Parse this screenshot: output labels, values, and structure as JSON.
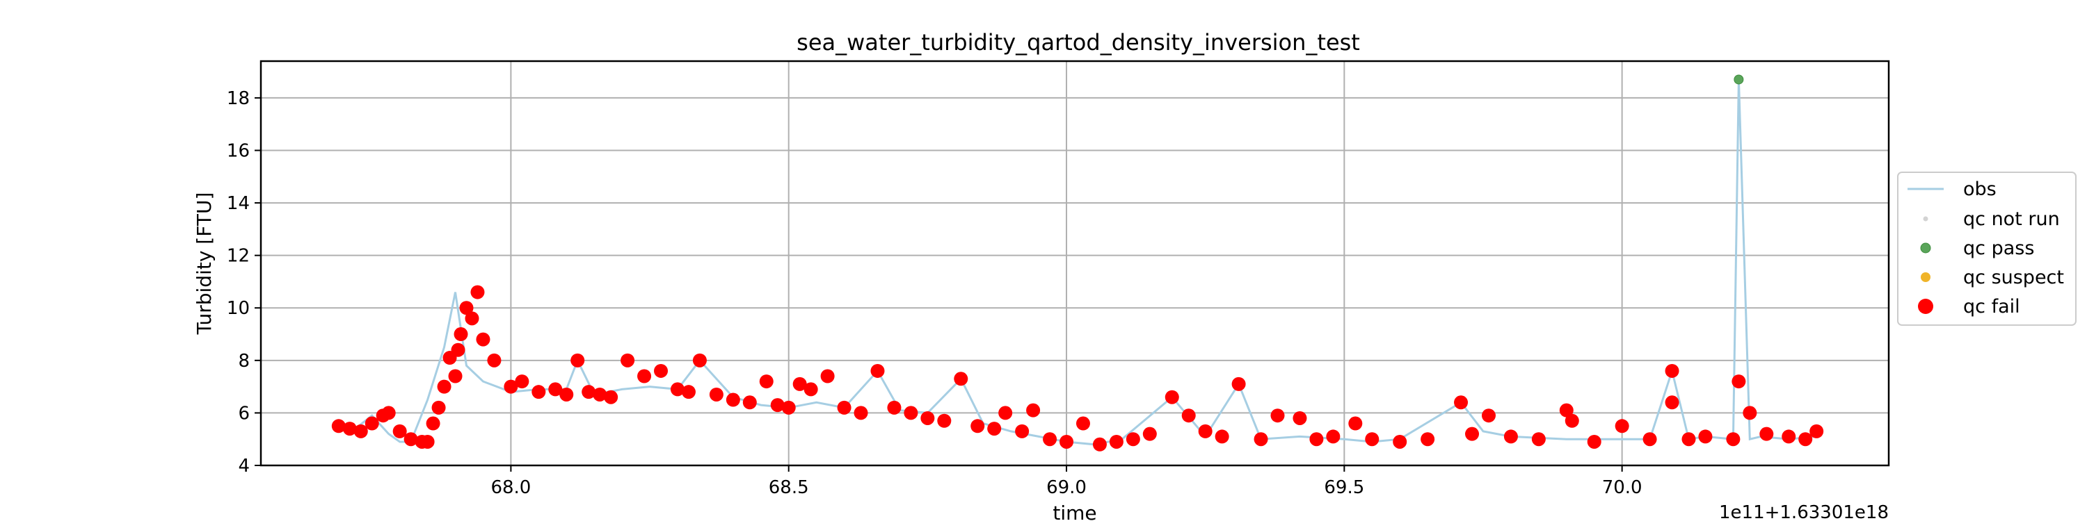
{
  "chart_data": {
    "type": "scatter",
    "title": "sea_water_turbidity_qartod_density_inversion_test",
    "xlabel": "time",
    "ylabel": "Turbidity [FTU]",
    "x_offset_text": "1e11+1.63301e18",
    "xlim": [
      67.55,
      70.48
    ],
    "ylim": [
      4,
      19.4
    ],
    "xticks": [
      68.0,
      68.5,
      69.0,
      69.5,
      70.0
    ],
    "xtick_labels": [
      "68.0",
      "68.5",
      "69.0",
      "69.5",
      "70.0"
    ],
    "yticks": [
      4,
      6,
      8,
      10,
      12,
      14,
      16,
      18
    ],
    "ytick_labels": [
      "4",
      "6",
      "8",
      "10",
      "12",
      "14",
      "16",
      "18"
    ],
    "grid": true,
    "legend_position": "right",
    "colors": {
      "obs": "#a6cee3",
      "qc_not_run": "#d3d3d3",
      "qc_pass": "#5aa55a",
      "qc_suspect": "#f0b429",
      "qc_fail": "#ff0000"
    },
    "series": [
      {
        "name": "obs",
        "kind": "line",
        "x": [
          67.69,
          67.72,
          67.75,
          67.78,
          67.8,
          67.82,
          67.85,
          67.88,
          67.9,
          67.92,
          67.95,
          68.0,
          68.05,
          68.1,
          68.12,
          68.15,
          68.2,
          68.25,
          68.3,
          68.34,
          68.4,
          68.45,
          68.5,
          68.55,
          68.6,
          68.66,
          68.7,
          68.75,
          68.81,
          68.85,
          68.9,
          68.95,
          69.0,
          69.05,
          69.1,
          69.19,
          69.25,
          69.31,
          69.35,
          69.42,
          69.5,
          69.55,
          69.6,
          69.71,
          69.75,
          69.8,
          69.9,
          70.0,
          70.05,
          70.09,
          70.12,
          70.15,
          70.2,
          70.21,
          70.23,
          70.25,
          70.3,
          70.35
        ],
        "y": [
          5.5,
          5.4,
          5.9,
          5.2,
          4.9,
          4.9,
          6.5,
          8.5,
          10.6,
          7.8,
          7.2,
          6.8,
          6.9,
          6.9,
          8.0,
          6.7,
          6.9,
          7.0,
          6.9,
          8.0,
          6.6,
          6.3,
          6.2,
          6.4,
          6.2,
          7.6,
          6.1,
          6.0,
          7.3,
          5.6,
          5.3,
          5.1,
          4.9,
          4.8,
          5.0,
          6.6,
          5.1,
          7.1,
          5.0,
          5.1,
          5.0,
          4.9,
          5.0,
          6.4,
          5.3,
          5.1,
          5.0,
          5.0,
          5.0,
          7.6,
          5.0,
          5.1,
          5.0,
          18.7,
          5.0,
          5.1,
          5.0,
          5.1
        ]
      },
      {
        "name": "qc not run",
        "kind": "points",
        "x": [],
        "y": []
      },
      {
        "name": "qc pass",
        "kind": "points",
        "x": [
          70.21
        ],
        "y": [
          18.7
        ]
      },
      {
        "name": "qc suspect",
        "kind": "points",
        "x": [],
        "y": []
      },
      {
        "name": "qc fail",
        "kind": "points",
        "x": [
          67.69,
          67.71,
          67.73,
          67.75,
          67.77,
          67.78,
          67.8,
          67.82,
          67.84,
          67.85,
          67.86,
          67.87,
          67.88,
          67.89,
          67.9,
          67.905,
          67.91,
          67.92,
          67.93,
          67.94,
          67.95,
          67.97,
          68.0,
          68.02,
          68.05,
          68.08,
          68.1,
          68.12,
          68.14,
          68.16,
          68.18,
          68.21,
          68.24,
          68.27,
          68.3,
          68.32,
          68.34,
          68.37,
          68.4,
          68.43,
          68.46,
          68.48,
          68.5,
          68.52,
          68.54,
          68.57,
          68.6,
          68.63,
          68.66,
          68.69,
          68.72,
          68.75,
          68.78,
          68.81,
          68.84,
          68.87,
          68.89,
          68.92,
          68.94,
          68.97,
          69.0,
          69.03,
          69.06,
          69.09,
          69.12,
          69.15,
          69.19,
          69.22,
          69.25,
          69.28,
          69.31,
          69.35,
          69.38,
          69.42,
          69.45,
          69.48,
          69.52,
          69.55,
          69.6,
          69.65,
          69.71,
          69.73,
          69.76,
          69.8,
          69.85,
          69.9,
          69.91,
          69.95,
          70.0,
          70.05,
          70.09,
          70.09,
          70.12,
          70.15,
          70.2,
          70.21,
          70.23,
          70.26,
          70.3,
          70.33,
          70.35
        ],
        "y": [
          5.5,
          5.4,
          5.3,
          5.6,
          5.9,
          6.0,
          5.3,
          5.0,
          4.9,
          4.9,
          5.6,
          6.2,
          7.0,
          8.1,
          7.4,
          8.4,
          9.0,
          10.0,
          9.6,
          10.6,
          8.8,
          8.0,
          7.0,
          7.2,
          6.8,
          6.9,
          6.7,
          8.0,
          6.8,
          6.7,
          6.6,
          8.0,
          7.4,
          7.6,
          6.9,
          6.8,
          8.0,
          6.7,
          6.5,
          6.4,
          7.2,
          6.3,
          6.2,
          7.1,
          6.9,
          7.4,
          6.2,
          6.0,
          7.6,
          6.2,
          6.0,
          5.8,
          5.7,
          7.3,
          5.5,
          5.4,
          6.0,
          5.3,
          6.1,
          5.0,
          4.9,
          5.6,
          4.8,
          4.9,
          5.0,
          5.2,
          6.6,
          5.9,
          5.3,
          5.1,
          7.1,
          5.0,
          5.9,
          5.8,
          5.0,
          5.1,
          5.6,
          5.0,
          4.9,
          5.0,
          6.4,
          5.2,
          5.9,
          5.1,
          5.0,
          6.1,
          5.7,
          4.9,
          5.5,
          5.0,
          7.6,
          6.4,
          5.0,
          5.1,
          5.0,
          7.2,
          6.0,
          5.2,
          5.1,
          5.0,
          5.3
        ]
      }
    ]
  }
}
